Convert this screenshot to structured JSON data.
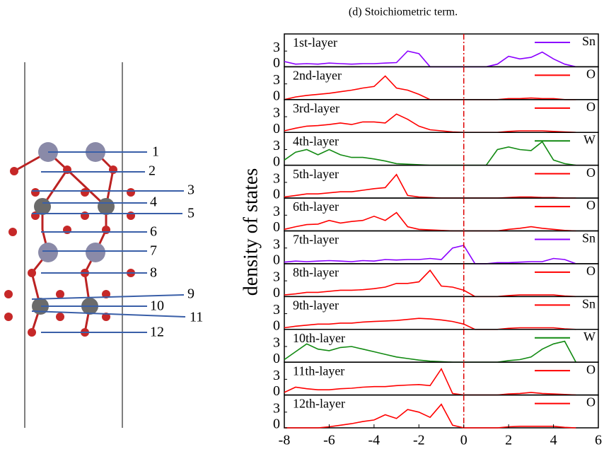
{
  "chart_data": {
    "type": "line",
    "title": "(d) Stoichiometric term.",
    "y_label": "density  of states",
    "x": [
      -8,
      -7.5,
      -7,
      -6.5,
      -6,
      -5.5,
      -5,
      -4.5,
      -4,
      -3.5,
      -3,
      -2.5,
      -2,
      -1.5,
      -1,
      -0.5,
      0,
      0.5,
      1,
      1.5,
      2,
      2.5,
      3,
      3.5,
      4,
      4.5,
      5
    ],
    "xlim": [
      -8,
      6
    ],
    "xticks": [
      -8,
      -6,
      -4,
      -2,
      0,
      2,
      4,
      6
    ],
    "ylim": [
      0,
      6
    ],
    "yticks": [
      0,
      3
    ],
    "vline_x": 0,
    "series": [
      {
        "panel": "1st-layer",
        "name": "Sn",
        "color": "#8b00ff",
        "values": [
          1,
          0.5,
          0.6,
          0.5,
          0.7,
          0.6,
          0.5,
          0.6,
          0.6,
          0.7,
          0.8,
          3,
          2.5,
          0,
          0,
          0,
          0,
          0,
          0,
          0.5,
          2,
          1.5,
          1.8,
          2.8,
          1.5,
          0.5,
          0
        ]
      },
      {
        "panel": "2nd-layer",
        "name": "O",
        "color": "#ff0000",
        "values": [
          0,
          0.5,
          0.8,
          1,
          1.2,
          1.5,
          1.8,
          2.2,
          2.5,
          4.5,
          2.2,
          1.8,
          1,
          0,
          0,
          0,
          0,
          0,
          0,
          0,
          0.2,
          0.2,
          0.3,
          0.2,
          0.2,
          0,
          0
        ]
      },
      {
        "panel": "3rd-layer",
        "name": "O",
        "color": "#ff0000",
        "values": [
          0.3,
          0.8,
          1.2,
          1.3,
          1.5,
          1.8,
          1.5,
          2,
          2,
          1.8,
          3.5,
          2.5,
          1.2,
          0.5,
          0.3,
          0.1,
          0,
          0,
          0,
          0,
          0.2,
          0.3,
          0.3,
          0.3,
          0.2,
          0.1,
          0
        ]
      },
      {
        "panel": "4th-layer",
        "name": "W",
        "color": "#128a12",
        "values": [
          1,
          2.5,
          3,
          2,
          3,
          2,
          1.5,
          1.5,
          1.2,
          0.8,
          0.3,
          0.2,
          0.1,
          0,
          0,
          0,
          0,
          0,
          0,
          3,
          3.5,
          3,
          2.8,
          4.5,
          1,
          0.3,
          0
        ]
      },
      {
        "panel": "5th-layer",
        "name": "O",
        "color": "#ff0000",
        "values": [
          0.2,
          0.5,
          0.8,
          0.8,
          1,
          1.2,
          1.2,
          1.5,
          1.8,
          2,
          4.5,
          0.5,
          0.2,
          0.1,
          0,
          0,
          0,
          0,
          0,
          0,
          0.1,
          0.2,
          0.2,
          0.1,
          0.1,
          0,
          0
        ]
      },
      {
        "panel": "6th-layer",
        "name": "O",
        "color": "#ff0000",
        "values": [
          0.3,
          0.8,
          1.2,
          1.3,
          2,
          1.5,
          1.8,
          2,
          2.8,
          2,
          3.5,
          0.8,
          0.3,
          0.2,
          0.1,
          0,
          0,
          0,
          0,
          0,
          0.3,
          0.5,
          0.8,
          0.5,
          0.3,
          0.1,
          0
        ]
      },
      {
        "panel": "7th-layer",
        "name": "Sn",
        "color": "#8b00ff",
        "values": [
          0.3,
          0.5,
          0.4,
          0.5,
          0.6,
          0.5,
          0.4,
          0.6,
          0.5,
          0.8,
          0.7,
          0.8,
          0.8,
          1,
          0.8,
          3,
          3.5,
          0,
          0,
          0.2,
          0.2,
          0.3,
          0.4,
          0.4,
          1,
          0.8,
          0
        ]
      },
      {
        "panel": "8th-layer",
        "name": "O",
        "color": "#ff0000",
        "values": [
          0.3,
          0.5,
          0.8,
          0.8,
          1,
          1.2,
          1.2,
          1.3,
          1.5,
          1.8,
          2.5,
          2.5,
          2.8,
          5,
          2,
          1.8,
          1.2,
          0,
          0,
          0,
          0.2,
          0.3,
          0.3,
          0.3,
          0.3,
          0.1,
          0
        ]
      },
      {
        "panel": "9th-layer",
        "name": "Sn",
        "color": "#ff0000",
        "values": [
          0.3,
          0.6,
          0.8,
          1,
          1,
          1.2,
          1.2,
          1.4,
          1.5,
          1.6,
          1.7,
          1.9,
          2.1,
          2,
          1.8,
          1.5,
          1,
          0,
          0,
          0,
          0.2,
          0.3,
          0.3,
          0.3,
          0.3,
          0.1,
          0
        ]
      },
      {
        "panel": "10th-layer",
        "name": "W",
        "color": "#128a12",
        "values": [
          0.5,
          2,
          3.5,
          2.5,
          2.2,
          2.8,
          3,
          2.5,
          2,
          1.5,
          1,
          0.7,
          0.4,
          0.2,
          0.1,
          0,
          0,
          0,
          0,
          0,
          0.3,
          0.5,
          1,
          2.5,
          3.5,
          4,
          0
        ]
      },
      {
        "panel": "11th-layer",
        "name": "O",
        "color": "#ff0000",
        "values": [
          0.5,
          1.5,
          1.2,
          1,
          1,
          1.2,
          1.3,
          1.5,
          1.6,
          1.6,
          1.8,
          1.9,
          2,
          1.8,
          5,
          0.3,
          0,
          0,
          0,
          0,
          0.2,
          0.3,
          0.5,
          0.3,
          0.2,
          0.1,
          0
        ]
      },
      {
        "panel": "12th-layer",
        "name": "O",
        "color": "#ff0000",
        "values": [
          0,
          0,
          0,
          0,
          0.2,
          0.5,
          0.8,
          1.2,
          1.5,
          2.5,
          1.8,
          3.5,
          3,
          2,
          4.5,
          0.5,
          0,
          0,
          0,
          0,
          0.2,
          0.3,
          0.3,
          0.3,
          0.3,
          0.1,
          0
        ]
      }
    ]
  },
  "structure": {
    "labels": [
      "1",
      "2",
      "3",
      "4",
      "5",
      "6",
      "7",
      "8",
      "9",
      "10",
      "11",
      "12"
    ]
  }
}
